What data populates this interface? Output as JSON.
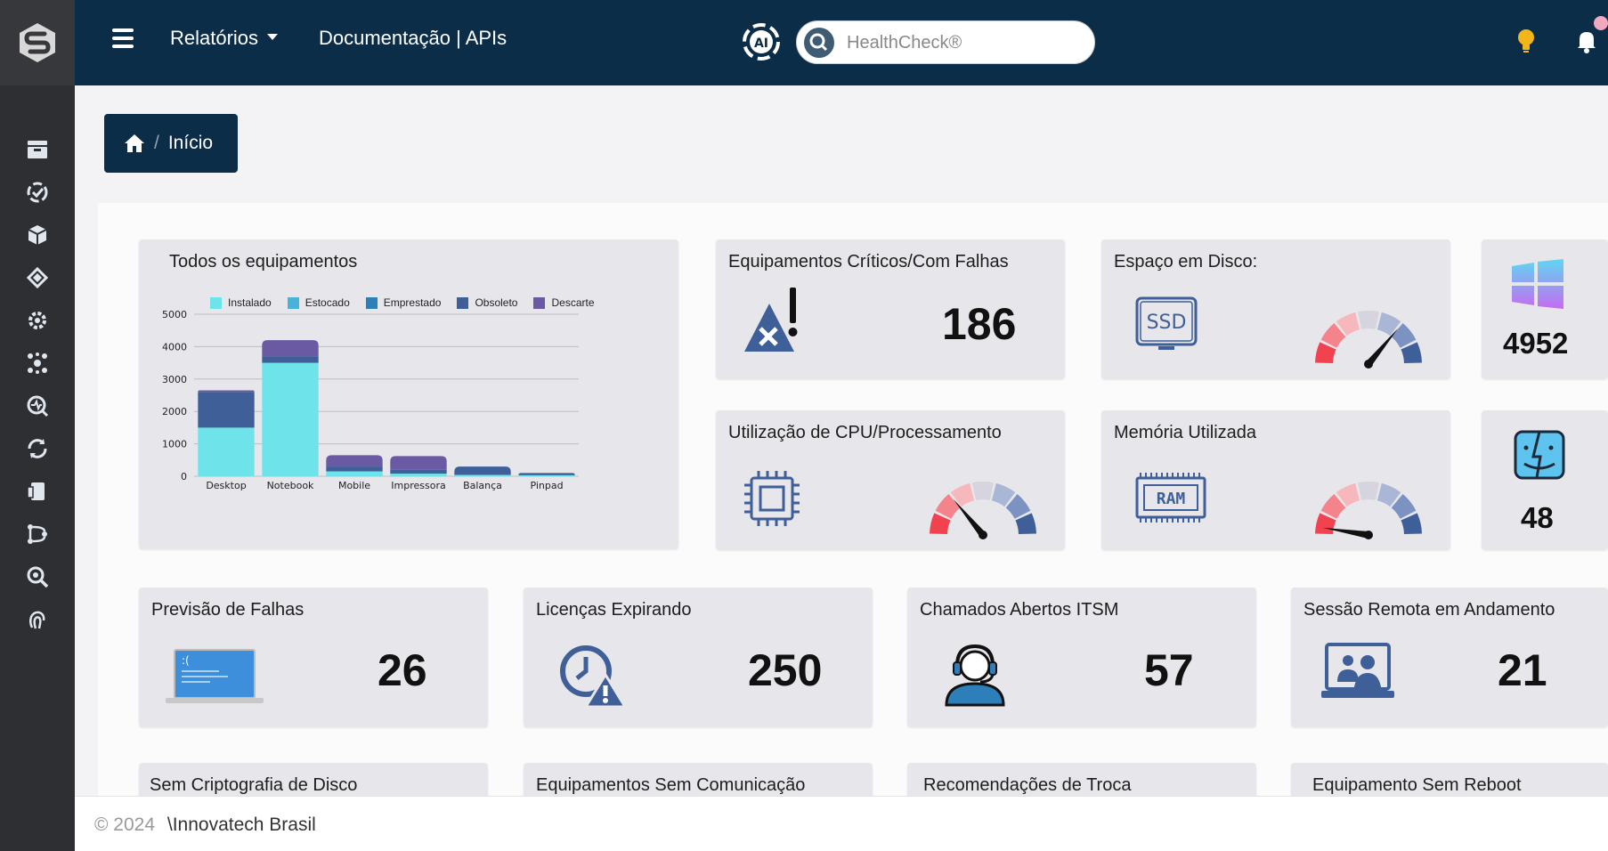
{
  "header": {
    "reports_label": "Relatórios",
    "docs_label": "Documentação | APIs",
    "search_placeholder": "HealthCheck®"
  },
  "breadcrumb": {
    "home_icon": "home-icon",
    "current": "Início"
  },
  "chart_data": {
    "type": "bar",
    "title": "Todos os equipamentos",
    "categories": [
      "Desktop",
      "Notebook",
      "Mobile",
      "Impressora",
      "Balança",
      "Pinpad"
    ],
    "series": [
      {
        "name": "Instalado",
        "color": "#6fe3ea",
        "values": [
          1500,
          3500,
          150,
          80,
          40,
          30
        ]
      },
      {
        "name": "Estocado",
        "color": "#49b2d8",
        "values": [
          0,
          0,
          0,
          0,
          0,
          0
        ]
      },
      {
        "name": "Emprestado",
        "color": "#2c7fb8",
        "values": [
          0,
          0,
          0,
          0,
          0,
          0
        ]
      },
      {
        "name": "Obsoleto",
        "color": "#3f5f99",
        "values": [
          1100,
          200,
          150,
          120,
          260,
          70
        ]
      },
      {
        "name": "Descarte",
        "color": "#6a5aa3",
        "values": [
          50,
          500,
          350,
          420,
          0,
          0
        ]
      }
    ],
    "yticks": [
      0,
      1000,
      2000,
      3000,
      4000,
      5000
    ],
    "ylim": [
      0,
      5000
    ],
    "grid": true,
    "legend": "top"
  },
  "cards": {
    "critical": {
      "title": "Equipamentos Críticos/Com Falhas",
      "value": "186",
      "icon": "alert-x-icon"
    },
    "disk": {
      "title": "Espaço em Disco:",
      "icon": "ssd-icon",
      "chip_label": "SSD",
      "gauge_level": 0.72
    },
    "cpu": {
      "title": "Utilização de CPU/Processamento",
      "icon": "cpu-icon",
      "gauge_level": 0.28
    },
    "memory": {
      "title": "Memória Utilizada",
      "icon": "ram-icon",
      "chip_label": "RAM",
      "gauge_level": 0.05
    },
    "windows": {
      "value": "4952",
      "icon": "windows-icon"
    },
    "mac": {
      "value": "48",
      "icon": "mac-finder-icon"
    },
    "failure_forecast": {
      "title": "Previsão de Falhas",
      "value": "26",
      "icon": "laptop-bsod-icon",
      "screen_text": ":("
    },
    "licenses": {
      "title": "Licenças Expirando",
      "value": "250",
      "icon": "clock-alert-icon"
    },
    "itsm": {
      "title": "Chamados Abertos ITSM",
      "value": "57",
      "icon": "support-agent-icon"
    },
    "remote": {
      "title": "Sessão Remota em Andamento",
      "value": "21",
      "icon": "remote-session-icon"
    },
    "no_crypto": {
      "title": "Sem Criptografia de Disco"
    },
    "no_comm": {
      "title": "Equipamentos Sem Comunicação"
    },
    "replace": {
      "title": "Recomendações de Troca"
    },
    "no_reboot": {
      "title": "Equipamento Sem Reboot"
    }
  },
  "footer": {
    "copyright": "© 2024",
    "company": "\\Innovatech Brasil"
  },
  "colors": {
    "topbar": "#0c2d48",
    "sidebar": "#2e2f33",
    "card": "#e7e6ea"
  }
}
